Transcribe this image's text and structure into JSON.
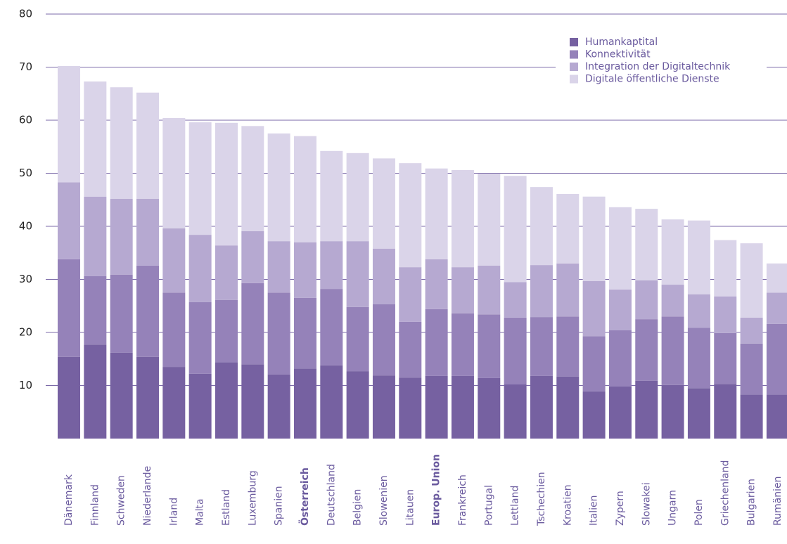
{
  "chart_data": {
    "type": "stacked_bar",
    "categories": [
      "Dänemark",
      "Finnland",
      "Schweden",
      "Niederlande",
      "Irland",
      "Malta",
      "Estland",
      "Luxemburg",
      "Spanien",
      "Österreich",
      "Deutschland",
      "Belgien",
      "Slowenien",
      "Litauen",
      "Europ. Union",
      "Frankreich",
      "Portugal",
      "Lettland",
      "Tschechien",
      "Kroatien",
      "Italien",
      "Zypern",
      "Slowakei",
      "Ungarn",
      "Polen",
      "Griechenland",
      "Bulgarien",
      "Rumänien"
    ],
    "highlight": [
      "Österreich",
      "Europ. Union"
    ],
    "series": [
      {
        "name": "Humankaptital",
        "color": "#7661a1",
        "values": [
          15.4,
          17.7,
          16.2,
          15.4,
          13.5,
          12.2,
          14.4,
          14.0,
          12.1,
          13.2,
          13.8,
          12.7,
          11.9,
          11.5,
          11.8,
          11.8,
          11.4,
          10.2,
          11.8,
          11.7,
          8.9,
          9.8,
          10.9,
          10.1,
          9.5,
          10.3,
          8.3,
          8.3
        ]
      },
      {
        "name": "Konnektivität",
        "color": "#9582b9",
        "values": [
          18.4,
          12.9,
          14.7,
          17.2,
          14.0,
          13.5,
          11.7,
          15.3,
          15.4,
          13.3,
          14.4,
          12.1,
          13.4,
          10.5,
          12.6,
          11.8,
          12.0,
          12.6,
          11.1,
          11.3,
          10.4,
          10.6,
          11.6,
          12.9,
          11.4,
          9.6,
          9.6,
          13.3
        ]
      },
      {
        "name": "Integration der Digitaltechnik",
        "color": "#b6a9d1",
        "values": [
          14.5,
          15.0,
          14.3,
          12.6,
          12.1,
          12.7,
          10.3,
          9.8,
          9.7,
          10.5,
          9.0,
          12.4,
          10.5,
          10.3,
          9.4,
          8.7,
          9.2,
          6.7,
          9.8,
          10.0,
          10.4,
          7.7,
          7.3,
          6.0,
          6.3,
          6.9,
          4.9,
          5.9
        ]
      },
      {
        "name": "Digitale öffentliche Dienste",
        "color": "#dad4e9",
        "values": [
          21.9,
          21.7,
          21.0,
          20.0,
          20.8,
          21.2,
          23.1,
          19.8,
          20.3,
          20.0,
          17.0,
          16.6,
          17.0,
          19.6,
          17.1,
          18.3,
          17.3,
          20.0,
          14.7,
          13.1,
          15.9,
          15.5,
          13.5,
          12.3,
          13.9,
          10.6,
          14.0,
          5.5
        ]
      }
    ],
    "ylim": [
      0,
      80
    ],
    "yticks": [
      10,
      20,
      30,
      40,
      50,
      60,
      70,
      80
    ],
    "grid": true,
    "legend": "upper right"
  }
}
